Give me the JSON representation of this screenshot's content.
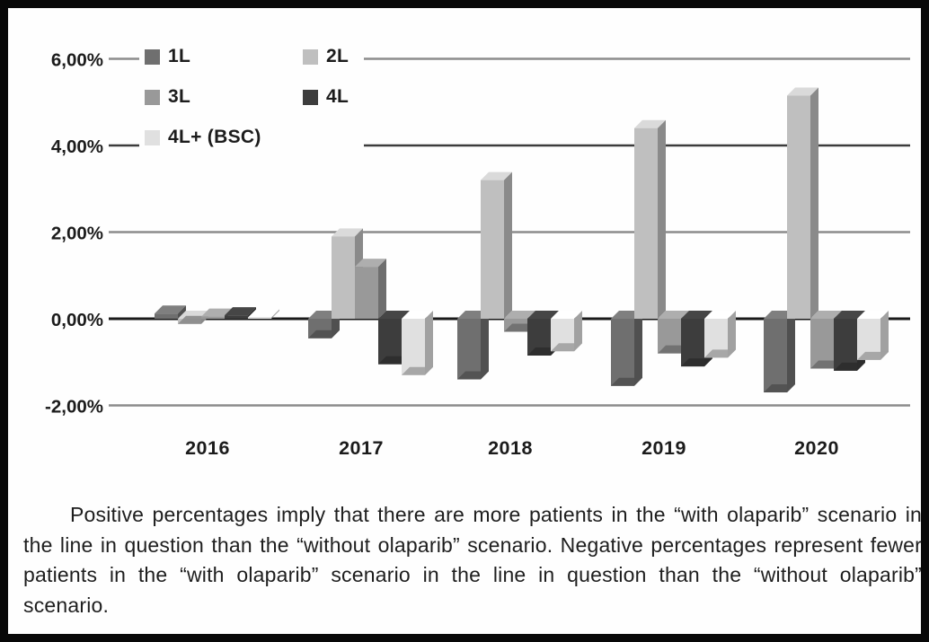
{
  "figure": {
    "border_color": "#080808",
    "background": "#fefefe"
  },
  "chart_data": {
    "type": "bar",
    "style": "3d-clustered-column",
    "title": "",
    "xlabel": "",
    "ylabel": "",
    "grid": true,
    "legend_position": "top-left-inside",
    "categories": [
      "2016",
      "2017",
      "2018",
      "2019",
      "2020"
    ],
    "series": [
      {
        "name": "1L",
        "color": "#6f6f6f",
        "values": [
          0.12,
          -0.45,
          -1.4,
          -1.55,
          -1.7
        ]
      },
      {
        "name": "2L",
        "color": "#bfbfbf",
        "values": [
          -0.12,
          1.9,
          3.2,
          4.4,
          5.15
        ]
      },
      {
        "name": "3L",
        "color": "#999999",
        "values": [
          0.05,
          1.2,
          -0.3,
          -0.8,
          -1.15
        ]
      },
      {
        "name": "4L",
        "color": "#3d3d3d",
        "values": [
          0.08,
          -1.05,
          -0.85,
          -1.1,
          -1.2
        ]
      },
      {
        "name": "4L+ (BSC)",
        "color": "#e0e0e0",
        "values": [
          0.03,
          -1.3,
          -0.75,
          -0.9,
          -0.95
        ]
      }
    ],
    "y_ticks": [
      "6,00%",
      "4,00%",
      "2,00%",
      "0,00%",
      "-2,00%"
    ],
    "y_tick_values": [
      6,
      4,
      2,
      0,
      -2
    ],
    "ylim": [
      -2.6,
      6.4
    ],
    "axis_color": "#1a1a1a",
    "grid_color": "#8c8c8c",
    "grid_color_strong": "#3c3c3c",
    "tick_label_color": "#1b1b1b"
  },
  "caption": {
    "text": "Positive percentages imply that there are more patients in the “with olaparib” scenario in the line in question than the “without olaparib” scenario. Negative percentages represent fewer patients in the “with olaparib” scenario in the line in question than the “without olaparib” scenario."
  }
}
